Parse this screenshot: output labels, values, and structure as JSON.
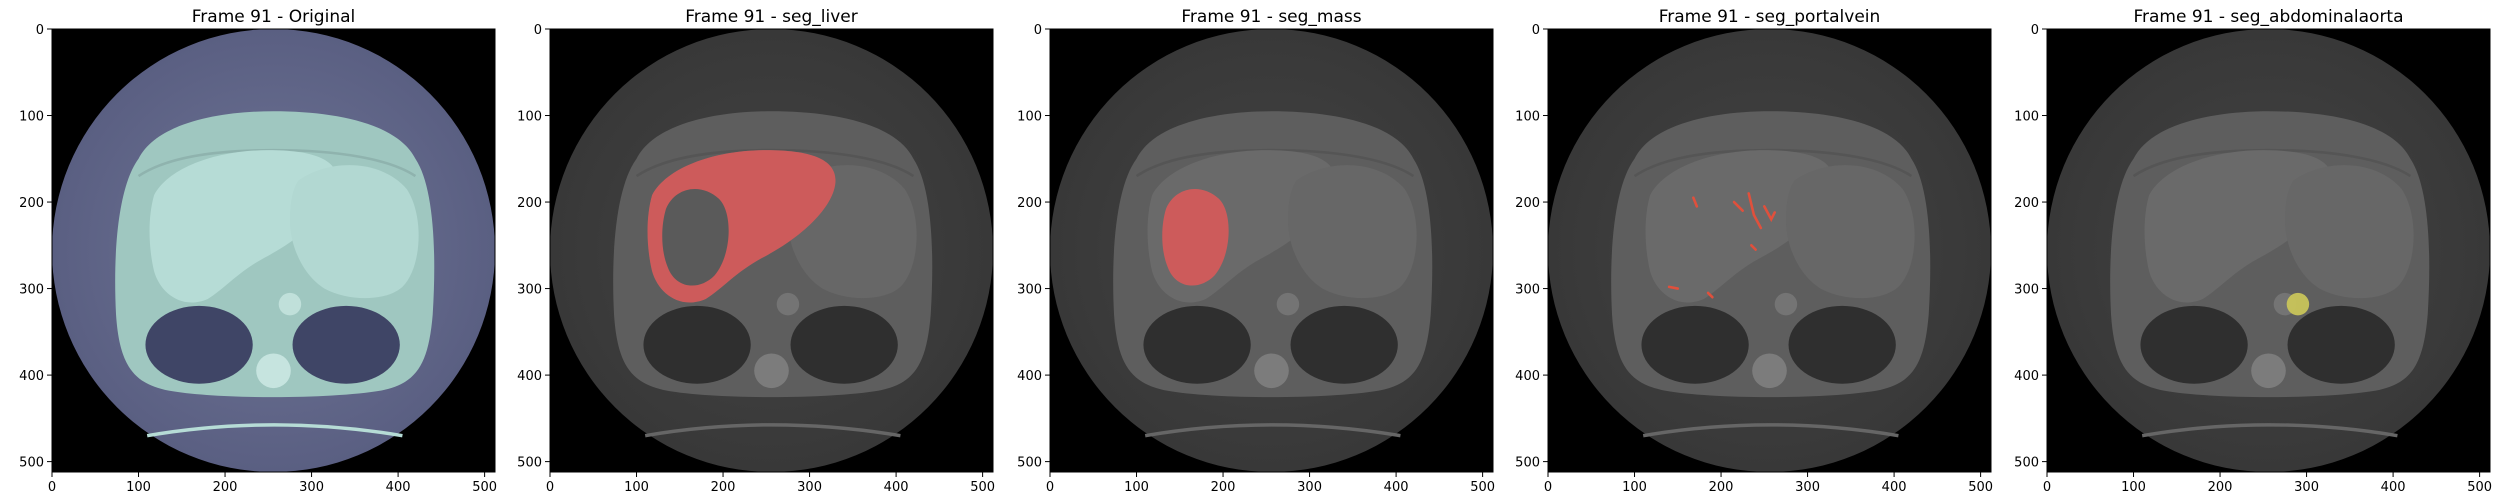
{
  "figure": {
    "panels": [
      {
        "title": "Frame 91 - Original",
        "mode": "original",
        "overlay": null,
        "overlay_color": null
      },
      {
        "title": "Frame 91 - seg_liver",
        "mode": "gray",
        "overlay": "liver",
        "overlay_color": "#d85a5a"
      },
      {
        "title": "Frame 91 - seg_mass",
        "mode": "gray",
        "overlay": "mass",
        "overlay_color": "#d85a5a"
      },
      {
        "title": "Frame 91 - seg_portalvein",
        "mode": "gray",
        "overlay": "portalvein",
        "overlay_color": "#e0503c"
      },
      {
        "title": "Frame 91 - seg_abdominalaorta",
        "mode": "gray",
        "overlay": "abdominalaorta",
        "overlay_color": "#c8c45a"
      }
    ],
    "axis": {
      "x_ticks": [
        "0",
        "100",
        "200",
        "300",
        "400",
        "500"
      ],
      "y_ticks": [
        "0",
        "100",
        "200",
        "300",
        "400",
        "500"
      ]
    }
  }
}
